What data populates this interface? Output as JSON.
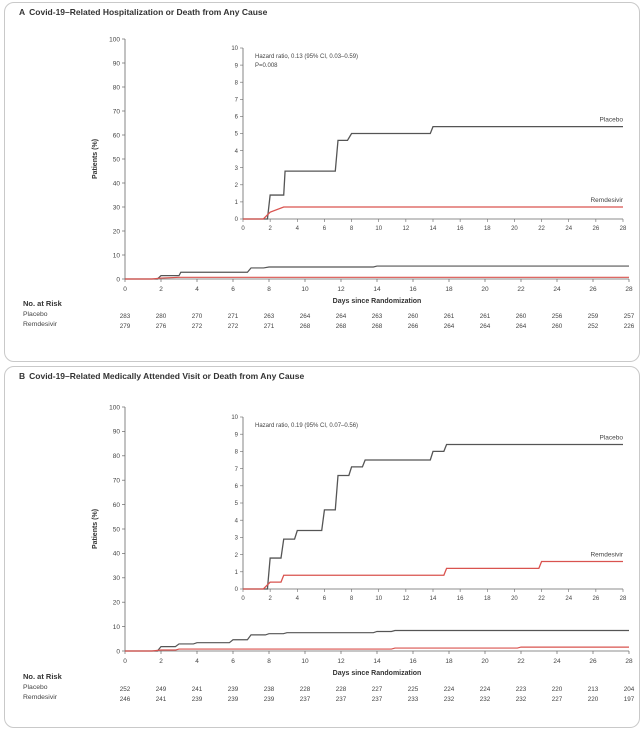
{
  "colors": {
    "placebo": "#555555",
    "remdesivir": "#d9534f",
    "axis": "#666666"
  },
  "risk_header": "No. at Risk",
  "chart_data": [
    {
      "letter": "A",
      "title": "Covid-19–Related Hospitalization or Death from Any Cause",
      "type": "line",
      "xlabel": "Days since Randomization",
      "ylabel": "Patients (%)",
      "xticks": [
        "0",
        "2",
        "4",
        "6",
        "8",
        "10",
        "12",
        "14",
        "16",
        "18",
        "20",
        "22",
        "24",
        "26",
        "28"
      ],
      "yticks": [
        "0",
        "10",
        "20",
        "30",
        "40",
        "50",
        "60",
        "70",
        "80",
        "90",
        "100"
      ],
      "xlim": [
        0,
        28
      ],
      "ylim": [
        0,
        100
      ],
      "series": [
        {
          "name": "Placebo",
          "key": "placebo",
          "x": [
            0,
            1.8,
            2.0,
            3.0,
            3.1,
            6.8,
            7.0,
            7.7,
            8.0,
            13.8,
            14.0,
            28
          ],
          "y": [
            0,
            0,
            1.4,
            1.4,
            2.8,
            2.8,
            4.6,
            4.6,
            5.0,
            5.0,
            5.4,
            5.4
          ]
        },
        {
          "name": "Remdesivir",
          "key": "remdesivir",
          "x": [
            0,
            1.5,
            2.0,
            3.0,
            28
          ],
          "y": [
            0,
            0,
            0.4,
            0.7,
            0.7
          ]
        }
      ],
      "inset": {
        "annotation": "Hazard ratio, 0.13 (95% CI, 0.03–0.59)",
        "pvalue": "P=0.008",
        "xticks": [
          "0",
          "2",
          "4",
          "6",
          "8",
          "10",
          "12",
          "14",
          "16",
          "18",
          "20",
          "22",
          "24",
          "26",
          "28"
        ],
        "yticks": [
          "0",
          "1",
          "2",
          "3",
          "4",
          "5",
          "6",
          "7",
          "8",
          "9",
          "10"
        ],
        "xlim": [
          0,
          28
        ],
        "ylim": [
          0,
          10
        ],
        "labels": {
          "placebo": "Placebo",
          "remdesivir": "Remdesivir"
        }
      },
      "risk": [
        {
          "name": "Placebo",
          "values": [
            "283",
            "280",
            "270",
            "271",
            "263",
            "264",
            "264",
            "263",
            "260",
            "261",
            "261",
            "260",
            "256",
            "259",
            "257"
          ]
        },
        {
          "name": "Remdesivir",
          "values": [
            "279",
            "276",
            "272",
            "272",
            "271",
            "268",
            "268",
            "268",
            "266",
            "264",
            "264",
            "264",
            "260",
            "252",
            "226"
          ]
        }
      ]
    },
    {
      "letter": "B",
      "title": "Covid-19–Related Medically Attended Visit or Death from Any Cause",
      "type": "line",
      "xlabel": "Days since Randomization",
      "ylabel": "Patients (%)",
      "xticks": [
        "0",
        "2",
        "4",
        "6",
        "8",
        "10",
        "12",
        "14",
        "16",
        "18",
        "20",
        "22",
        "24",
        "26",
        "28"
      ],
      "yticks": [
        "0",
        "10",
        "20",
        "30",
        "40",
        "50",
        "60",
        "70",
        "80",
        "90",
        "100"
      ],
      "xlim": [
        0,
        28
      ],
      "ylim": [
        0,
        100
      ],
      "series": [
        {
          "name": "Placebo",
          "key": "placebo",
          "x": [
            0,
            1.8,
            2.0,
            2.8,
            3.0,
            3.8,
            4.0,
            5.8,
            6.0,
            6.8,
            7.0,
            7.8,
            8.0,
            8.8,
            9.0,
            13.8,
            14.0,
            14.8,
            15.0,
            28
          ],
          "y": [
            0,
            0,
            1.8,
            1.8,
            2.9,
            2.9,
            3.4,
            3.4,
            4.6,
            4.6,
            6.6,
            6.6,
            7.1,
            7.1,
            7.5,
            7.5,
            8.0,
            8.0,
            8.4,
            8.4
          ]
        },
        {
          "name": "Remdesivir",
          "key": "remdesivir",
          "x": [
            0,
            1.5,
            2.0,
            2.8,
            3.0,
            14.8,
            15.0,
            21.8,
            22.0,
            28
          ],
          "y": [
            0,
            0,
            0.4,
            0.4,
            0.8,
            0.8,
            1.2,
            1.2,
            1.6,
            1.6
          ]
        }
      ],
      "inset": {
        "annotation": "Hazard ratio, 0.19 (95% CI, 0.07–0.56)",
        "pvalue": "",
        "xticks": [
          "0",
          "2",
          "4",
          "6",
          "8",
          "10",
          "12",
          "14",
          "16",
          "18",
          "20",
          "22",
          "24",
          "26",
          "28"
        ],
        "yticks": [
          "0",
          "1",
          "2",
          "3",
          "4",
          "5",
          "6",
          "7",
          "8",
          "9",
          "10"
        ],
        "xlim": [
          0,
          28
        ],
        "ylim": [
          0,
          10
        ],
        "labels": {
          "placebo": "Placebo",
          "remdesivir": "Remdesivir"
        }
      },
      "risk": [
        {
          "name": "Placebo",
          "values": [
            "252",
            "249",
            "241",
            "239",
            "238",
            "228",
            "228",
            "227",
            "225",
            "224",
            "224",
            "223",
            "220",
            "213",
            "204"
          ]
        },
        {
          "name": "Remdesivir",
          "values": [
            "246",
            "241",
            "239",
            "239",
            "239",
            "237",
            "237",
            "237",
            "233",
            "232",
            "232",
            "232",
            "227",
            "220",
            "197"
          ]
        }
      ]
    }
  ]
}
